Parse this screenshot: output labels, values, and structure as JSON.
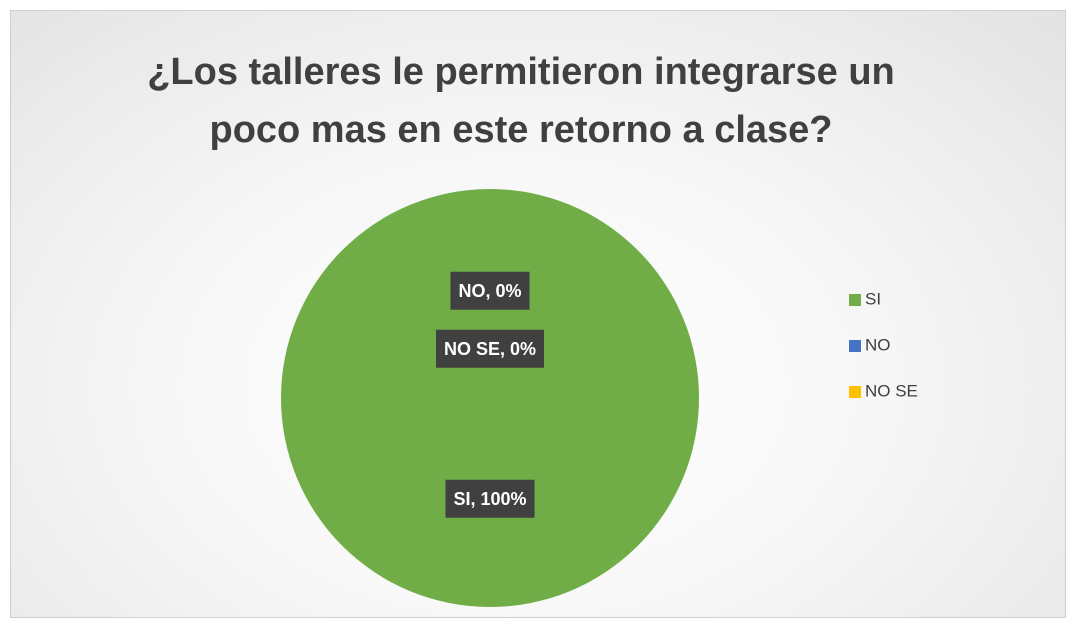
{
  "chart_data": {
    "type": "pie",
    "title": "¿Los talleres le permitieron integrarse un poco mas en este retorno a clase?",
    "categories": [
      "SI",
      "NO",
      "NO SE"
    ],
    "values": [
      100,
      0,
      0
    ],
    "value_labels": [
      "SI, 100%",
      "NO, 0%",
      "NO SE, 0%"
    ],
    "colors": [
      "#70ad47",
      "#4472c4",
      "#ffc000"
    ],
    "legend": "right"
  }
}
